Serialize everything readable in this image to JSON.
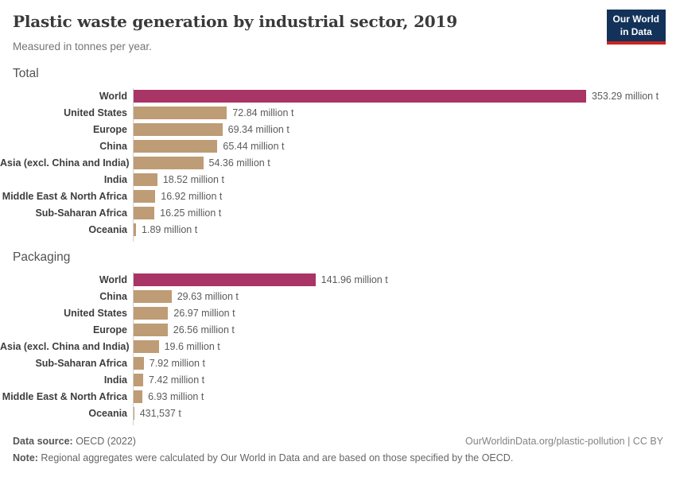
{
  "header": {
    "title": "Plastic waste generation by industrial sector, 2019",
    "subtitle": "Measured in tonnes per year.",
    "logo_line1": "Our World",
    "logo_line2": "in Data"
  },
  "colors": {
    "world_bar": "#a93466",
    "default_bar": "#be9c75",
    "axis_line": "#d0d0d0",
    "logo_bg": "#12325a",
    "logo_accent": "#cb2420"
  },
  "chart_data": [
    {
      "type": "bar",
      "title": "Total",
      "orientation": "horizontal",
      "unit": "tonnes per year",
      "xlim": [
        0,
        353.29
      ],
      "grid": false,
      "highlight": "World",
      "categories": [
        "World",
        "United States",
        "Europe",
        "China",
        "Asia (excl. China and India)",
        "India",
        "Middle East & North Africa",
        "Sub-Saharan Africa",
        "Oceania"
      ],
      "values": [
        353.29,
        72.84,
        69.34,
        65.44,
        54.36,
        18.52,
        16.92,
        16.25,
        1.89
      ],
      "value_labels": [
        "353.29 million t",
        "72.84 million t",
        "69.34 million t",
        "65.44 million t",
        "54.36 million t",
        "18.52 million t",
        "16.92 million t",
        "16.25 million t",
        "1.89 million t"
      ]
    },
    {
      "type": "bar",
      "title": "Packaging",
      "orientation": "horizontal",
      "unit": "tonnes per year",
      "xlim": [
        0,
        353.29
      ],
      "grid": false,
      "highlight": "World",
      "categories": [
        "World",
        "China",
        "United States",
        "Europe",
        "Asia (excl. China and India)",
        "Sub-Saharan Africa",
        "India",
        "Middle East & North Africa",
        "Oceania"
      ],
      "values": [
        141.96,
        29.63,
        26.97,
        26.56,
        19.6,
        7.92,
        7.42,
        6.93,
        0.431537
      ],
      "value_labels": [
        "141.96 million t",
        "29.63 million t",
        "26.97 million t",
        "26.56 million t",
        "19.6 million t",
        "7.92 million t",
        "7.42 million t",
        "6.93 million t",
        "431,537 t"
      ]
    }
  ],
  "footer": {
    "source_label": "Data source:",
    "source_value": " OECD (2022)",
    "link": "OurWorldinData.org/plastic-pollution | CC BY",
    "note_label": "Note:",
    "note_value": " Regional aggregates were calculated by Our World in Data and are based on those specified by the OECD."
  }
}
